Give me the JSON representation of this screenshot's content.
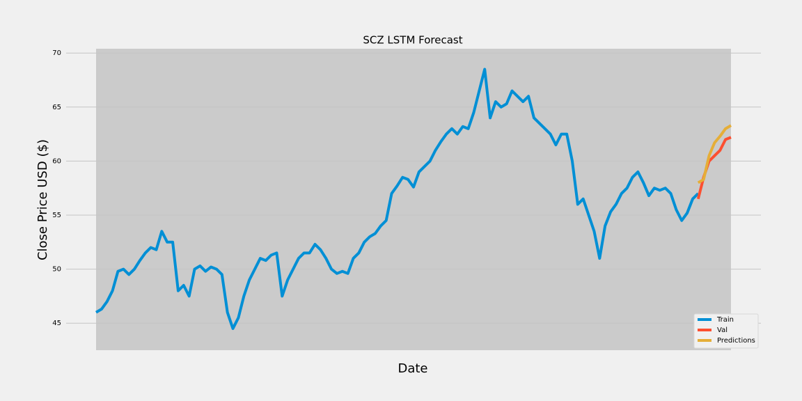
{
  "chart_data": {
    "type": "line",
    "title": "SCZ LSTM Forecast",
    "xlabel": "Date",
    "ylabel": "Close Price USD ($)",
    "ylim": [
      42.5,
      70.4
    ],
    "yticks": [
      45,
      50,
      55,
      60,
      65,
      70
    ],
    "grid": true,
    "legend": "lower right",
    "series": [
      {
        "name": "Train",
        "color": "#008fd5",
        "values": [
          46,
          46.3,
          47,
          48,
          49.8,
          50,
          49.5,
          50,
          50.8,
          51.5,
          52,
          51.8,
          53.5,
          52.5,
          52.5,
          48,
          48.5,
          47.5,
          50,
          50.3,
          49.8,
          50.2,
          50,
          49.5,
          46,
          44.5,
          45.5,
          47.5,
          49,
          50,
          51,
          50.8,
          51.3,
          51.5,
          47.5,
          49,
          50,
          51,
          51.5,
          51.5,
          52.3,
          51.8,
          51,
          50,
          49.6,
          49.8,
          49.6,
          51,
          51.5,
          52.5,
          53,
          53.3,
          54,
          54.5,
          57,
          57.7,
          58.5,
          58.3,
          57.6,
          59,
          59.5,
          60,
          61,
          61.8,
          62.5,
          63,
          62.5,
          63.2,
          63,
          64.5,
          66.5,
          68.5,
          64,
          65.5,
          65,
          65.3,
          66.5,
          66,
          65.5,
          66,
          64,
          63.5,
          63,
          62.5,
          61.5,
          62.5,
          62.5,
          60,
          56,
          56.5,
          55,
          53.5,
          51,
          54,
          55.3,
          56,
          57,
          57.5,
          58.5,
          59,
          58,
          56.8,
          57.5,
          57.3,
          57.5,
          57,
          55.5,
          54.5,
          55.2,
          56.5,
          57,
          null,
          null,
          null,
          null,
          null,
          null
        ]
      },
      {
        "name": "Val",
        "color": "#fc4f30",
        "values": [
          null,
          null,
          null,
          null,
          null,
          null,
          null,
          null,
          null,
          null,
          null,
          null,
          null,
          null,
          null,
          null,
          null,
          null,
          null,
          null,
          null,
          null,
          null,
          null,
          null,
          null,
          null,
          null,
          null,
          null,
          null,
          null,
          null,
          null,
          null,
          null,
          null,
          null,
          null,
          null,
          null,
          null,
          null,
          null,
          null,
          null,
          null,
          null,
          null,
          null,
          null,
          null,
          null,
          null,
          null,
          null,
          null,
          null,
          null,
          null,
          null,
          null,
          null,
          null,
          null,
          null,
          null,
          null,
          null,
          null,
          null,
          null,
          null,
          null,
          null,
          null,
          null,
          null,
          null,
          null,
          null,
          null,
          null,
          null,
          null,
          null,
          null,
          null,
          null,
          null,
          null,
          null,
          null,
          null,
          null,
          null,
          null,
          null,
          null,
          null,
          null,
          null,
          null,
          null,
          null,
          null,
          null,
          null,
          null,
          null,
          56.5,
          58.5,
          60,
          60.5,
          61,
          62,
          62.2
        ]
      },
      {
        "name": "Predictions",
        "color": "#e5ae38",
        "values": [
          null,
          null,
          null,
          null,
          null,
          null,
          null,
          null,
          null,
          null,
          null,
          null,
          null,
          null,
          null,
          null,
          null,
          null,
          null,
          null,
          null,
          null,
          null,
          null,
          null,
          null,
          null,
          null,
          null,
          null,
          null,
          null,
          null,
          null,
          null,
          null,
          null,
          null,
          null,
          null,
          null,
          null,
          null,
          null,
          null,
          null,
          null,
          null,
          null,
          null,
          null,
          null,
          null,
          null,
          null,
          null,
          null,
          null,
          null,
          null,
          null,
          null,
          null,
          null,
          null,
          null,
          null,
          null,
          null,
          null,
          null,
          null,
          null,
          null,
          null,
          null,
          null,
          null,
          null,
          null,
          null,
          null,
          null,
          null,
          null,
          null,
          null,
          null,
          null,
          null,
          null,
          null,
          null,
          null,
          null,
          null,
          null,
          null,
          null,
          null,
          null,
          null,
          null,
          null,
          null,
          null,
          null,
          null,
          null,
          null,
          58,
          58.3,
          60.5,
          61.7,
          62.3,
          63,
          63.3
        ]
      }
    ]
  }
}
